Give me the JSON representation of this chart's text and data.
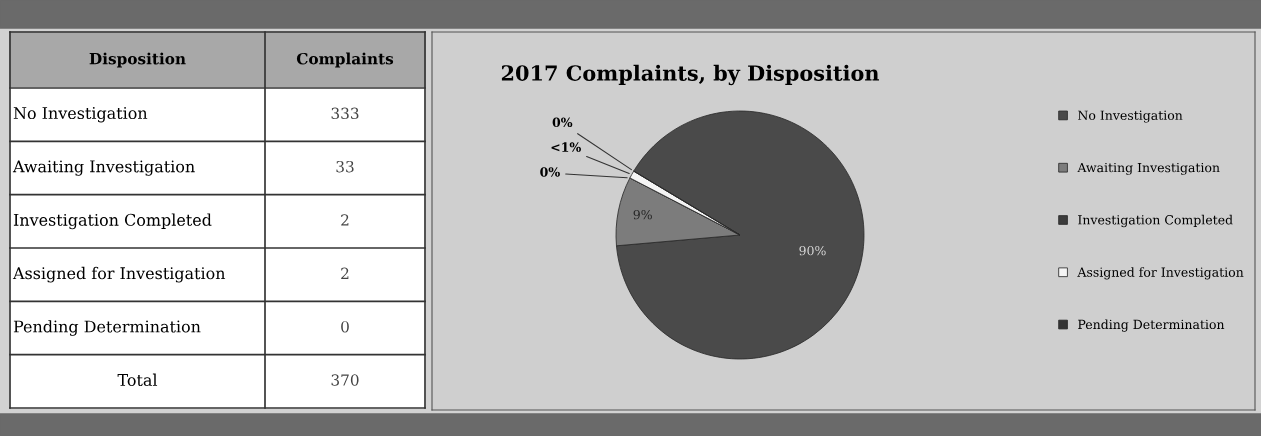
{
  "chart_data": [
    {
      "type": "other",
      "annotations": [
        "Disposition",
        "Complaints",
        "No Investigation",
        "333",
        "Awaiting Investigation",
        "33",
        "Investigation Completed",
        "2",
        "Assigned for Investigation",
        "2",
        "Pending Determination",
        "0",
        "Total",
        "370"
      ]
    },
    {
      "type": "pie",
      "title": "2017 Complaints, by Disposition",
      "categories": [
        "No Investigation",
        "Awaiting Investigation",
        "Investigation Completed",
        "Assigned for Investigation",
        "Pending Determination"
      ],
      "values": [
        90,
        9,
        0,
        1,
        0
      ],
      "colors": [
        "#4a4a4a",
        "#7c7c7c",
        "#3c3c3c",
        "#f4f4f4",
        "#353535"
      ],
      "value_labels": [
        "90%",
        "9%",
        "0%",
        "<1%",
        "0%"
      ],
      "legend": "right"
    }
  ]
}
